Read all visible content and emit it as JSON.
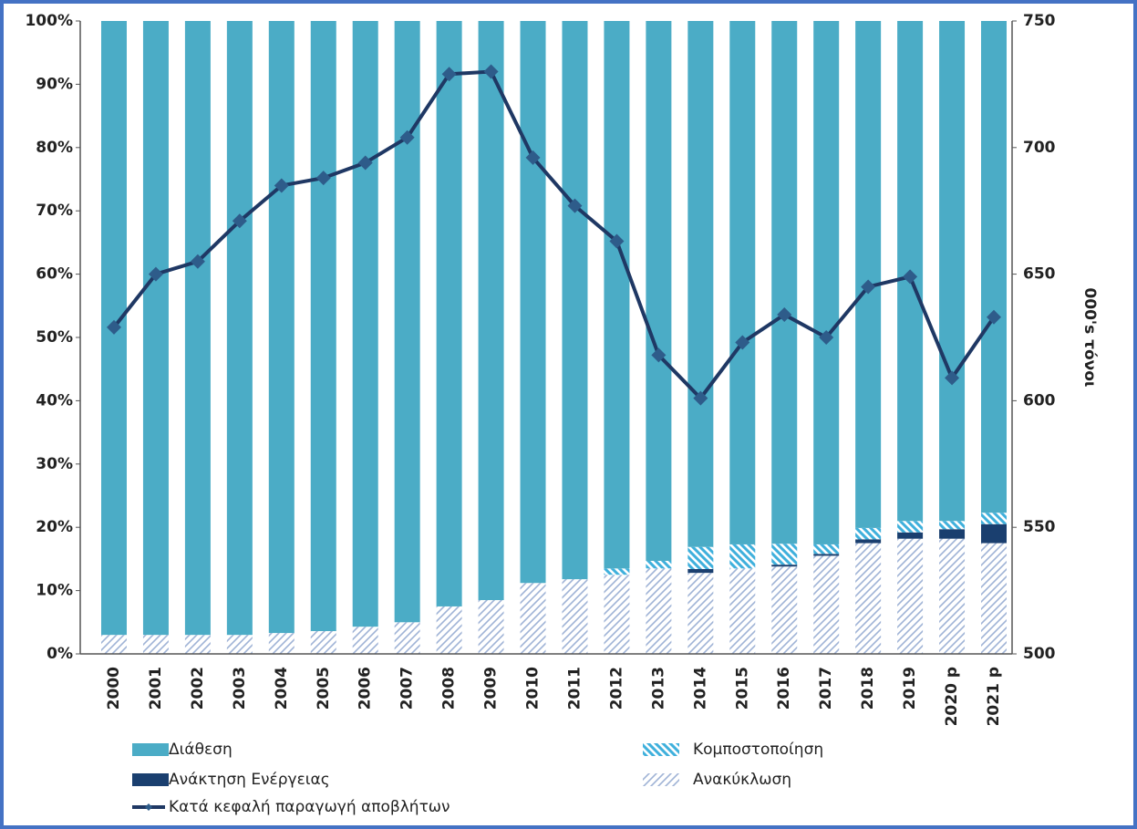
{
  "chart_data": {
    "type": "stacked_bar_line",
    "categories": [
      "2000",
      "2001",
      "2002",
      "2003",
      "2004",
      "2005",
      "2006",
      "2007",
      "2008",
      "2009",
      "2010",
      "2011",
      "2012",
      "2013",
      "2014",
      "2015",
      "2016",
      "2017",
      "2018",
      "2019",
      "2020 p",
      "2021 p"
    ],
    "series": [
      {
        "name": "Ανακύκλωση",
        "color": "#9fb3d6",
        "hatch": "/",
        "values": [
          3,
          3,
          3,
          3,
          3.3,
          3.6,
          4.3,
          5,
          7.5,
          8.5,
          11.2,
          11.8,
          12.5,
          13.5,
          12.8,
          13.5,
          13.8,
          15.5,
          17.5,
          18.2,
          18.2,
          17.5
        ]
      },
      {
        "name": "Ανάκτηση Ενέργειας",
        "color": "#1a3f6f",
        "values": [
          0,
          0,
          0,
          0,
          0,
          0,
          0,
          0,
          0,
          0,
          0,
          0,
          0,
          0,
          0.6,
          0,
          0.3,
          0.3,
          0.6,
          1,
          1.5,
          3
        ]
      },
      {
        "name": "Κομποστοποίηση",
        "color": "#3fb0dc",
        "hatch": "\\",
        "values": [
          0,
          0,
          0,
          0,
          0,
          0,
          0,
          0,
          0,
          0,
          0,
          0,
          1,
          1.2,
          3.5,
          3.8,
          3.3,
          1.5,
          1.8,
          1.8,
          1.3,
          1.8
        ]
      },
      {
        "name": "Διάθεση",
        "color": "#4bacc6",
        "values": [
          97,
          97,
          97,
          97,
          96.7,
          96.4,
          95.7,
          95,
          92.5,
          91.5,
          88.8,
          88.2,
          86.5,
          85.3,
          83.1,
          82.7,
          82.6,
          82.7,
          80.1,
          79,
          79,
          77.7
        ]
      },
      {
        "name": "Κατά κεφαλή παραγωγή αποβλήτων",
        "color": "#1f3864",
        "axis": "y2",
        "values": [
          629,
          650,
          655,
          671,
          685,
          688,
          694,
          704,
          729,
          730,
          696,
          677,
          663,
          618,
          601,
          623,
          634,
          625,
          645,
          649,
          609,
          633
        ]
      }
    ],
    "ylim": [
      0,
      100
    ],
    "yticks": [
      {
        "value": 0,
        "label": "0%"
      },
      {
        "value": 10,
        "label": "10%"
      },
      {
        "value": 20,
        "label": "20%"
      },
      {
        "value": 30,
        "label": "30%"
      },
      {
        "value": 40,
        "label": "40%"
      },
      {
        "value": 50,
        "label": "50%"
      },
      {
        "value": 60,
        "label": "60%"
      },
      {
        "value": 70,
        "label": "70%"
      },
      {
        "value": 80,
        "label": "80%"
      },
      {
        "value": 90,
        "label": "90%"
      },
      {
        "value": 100,
        "label": "100%"
      }
    ],
    "y2lim": [
      500,
      750
    ],
    "y2ticks": [
      500,
      550,
      600,
      650,
      700,
      750
    ],
    "y2label": "000's τόνοι"
  }
}
